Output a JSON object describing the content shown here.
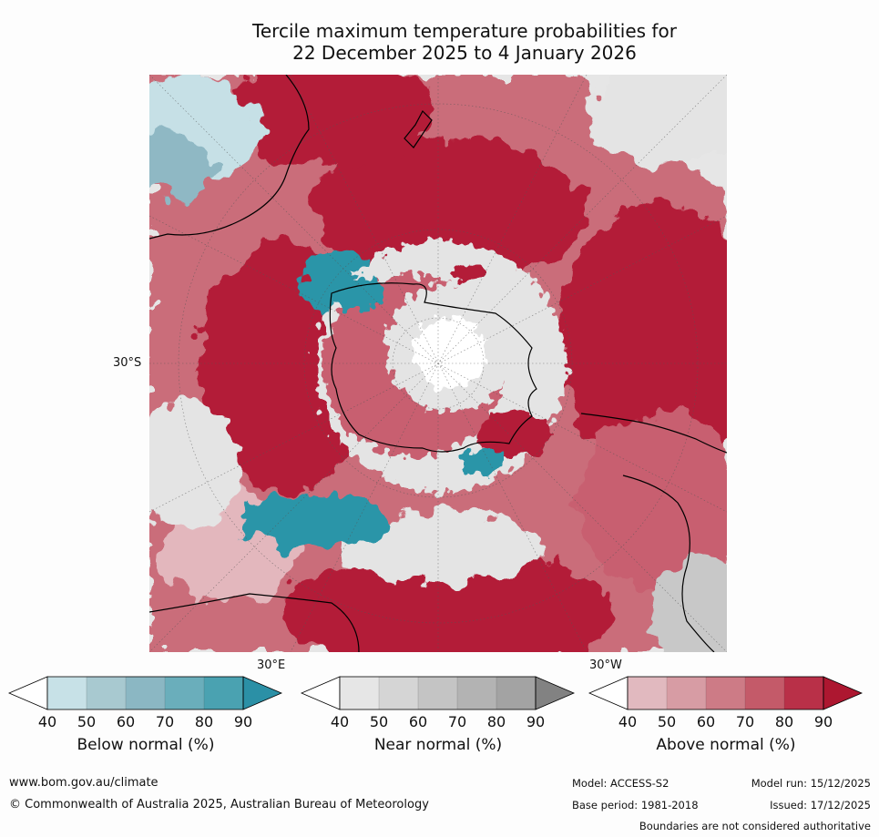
{
  "title_line1": "Tercile maximum temperature probabilities for",
  "title_line2": "22 December 2025 to 4 January 2026",
  "map": {
    "lat_label": "30°S",
    "lon_label_east": "30°E",
    "lon_label_west": "30°W",
    "colors": {
      "white": "#ffffff",
      "below_light": "#c6e0e6",
      "below_mid": "#8fb8c4",
      "below_strong": "#2c95a8",
      "near_light": "#e4e4e4",
      "near_mid": "#c8c8c8",
      "near_dark": "#a2a2a2",
      "above_light": "#e3b7bd",
      "above_mid": "#c85f6f",
      "above_strong": "#b31c38",
      "land_line": "#000000"
    }
  },
  "colorbars": [
    {
      "title": "Below normal (%)",
      "ticks": [
        "40",
        "50",
        "60",
        "70",
        "80",
        "90"
      ],
      "colors": [
        "#ffffff",
        "#c7e1e7",
        "#a8c9d0",
        "#8bb7c3",
        "#6aaebb",
        "#4aa2b1",
        "#2b90a6"
      ]
    },
    {
      "title": "Near normal (%)",
      "ticks": [
        "40",
        "50",
        "60",
        "70",
        "80",
        "90"
      ],
      "colors": [
        "#ffffff",
        "#e6e6e6",
        "#d5d5d5",
        "#c4c4c4",
        "#b3b3b3",
        "#a3a3a3",
        "#828282"
      ]
    },
    {
      "title": "Above normal (%)",
      "ticks": [
        "40",
        "50",
        "60",
        "70",
        "80",
        "90"
      ],
      "colors": [
        "#ffffff",
        "#e1b9bf",
        "#d79ca4",
        "#cd7b86",
        "#c45a69",
        "#b93048",
        "#ad1730"
      ]
    }
  ],
  "footer": {
    "website": "www.bom.gov.au/climate",
    "copyright": "© Commonwealth of Australia 2025, Australian Bureau of Meteorology",
    "model": "Model: ACCESS-S2",
    "model_run": "Model run: 15/12/2025",
    "base_period": "Base period: 1981-2018",
    "issued": "Issued: 17/12/2025",
    "disclaimer": "Boundaries are not considered authoritative"
  }
}
